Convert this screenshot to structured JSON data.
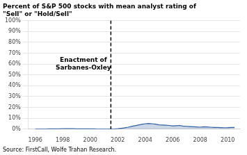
{
  "chart_data": {
    "type": "area",
    "title": [
      "Percent of S&P 500 stocks with mean analyst rating of",
      "\"Sell\" or \"Hold/Sell\""
    ],
    "source": "Source: FirstCall, Wolfe Trahan Research.",
    "annotations": [
      {
        "text": "Enactment of\nSarbanes-Oxley",
        "x": 1999.5,
        "y": 0.6
      }
    ],
    "vlines": [
      {
        "x": 2001.5,
        "color": "black",
        "line_style": "dashed"
      }
    ],
    "x": [
      1996.0,
      1996.25,
      1996.5,
      1996.75,
      1997.0,
      1997.25,
      1997.5,
      1997.75,
      1998.0,
      1998.25,
      1998.5,
      1998.75,
      1999.0,
      1999.25,
      1999.5,
      1999.75,
      2000.0,
      2000.25,
      2000.5,
      2000.75,
      2001.0,
      2001.25,
      2001.5,
      2001.75,
      2002.0,
      2002.25,
      2002.5,
      2002.75,
      2003.0,
      2003.25,
      2003.5,
      2003.75,
      2004.0,
      2004.25,
      2004.5,
      2004.75,
      2005.0,
      2005.25,
      2005.5,
      2005.75,
      2006.0,
      2006.25,
      2006.5,
      2006.75,
      2007.0,
      2007.25,
      2007.5,
      2007.75,
      2008.0,
      2008.25,
      2008.5,
      2008.75,
      2009.0,
      2009.25,
      2009.5,
      2009.75,
      2010.0,
      2010.25,
      2010.5
    ],
    "series": [
      {
        "color": "#3060a0",
        "values": [
          0.002,
          0.002,
          0.002,
          0.002,
          0.003,
          0.003,
          0.003,
          0.003,
          0.004,
          0.004,
          0.004,
          0.004,
          0.003,
          0.003,
          0.003,
          0.003,
          0.003,
          0.003,
          0.002,
          0.002,
          0.002,
          0.002,
          0.002,
          0.002,
          0.004,
          0.008,
          0.012,
          0.018,
          0.025,
          0.032,
          0.038,
          0.044,
          0.05,
          0.052,
          0.05,
          0.046,
          0.04,
          0.038,
          0.036,
          0.034,
          0.03,
          0.032,
          0.034,
          0.028,
          0.026,
          0.024,
          0.022,
          0.02,
          0.018,
          0.022,
          0.02,
          0.018,
          0.016,
          0.015,
          0.014,
          0.013,
          0.014,
          0.016,
          0.015
        ]
      }
    ],
    "xlim": [
      1995.5,
      2010.9
    ],
    "ylim": [
      0,
      1.0
    ],
    "xticks": [
      1996,
      1998,
      2000,
      2002,
      2004,
      2006,
      2008,
      2010
    ],
    "yticks": [
      {
        "value": 0.0,
        "label": "0%"
      },
      {
        "value": 0.1,
        "label": "10%"
      },
      {
        "value": 0.2,
        "label": "20%"
      },
      {
        "value": 0.3,
        "label": "30%"
      },
      {
        "value": 0.4,
        "label": "40%"
      },
      {
        "value": 0.5,
        "label": "50%"
      },
      {
        "value": 0.6,
        "label": "60%"
      },
      {
        "value": 0.7,
        "label": "70%"
      },
      {
        "value": 0.8,
        "label": "80%"
      },
      {
        "value": 0.9,
        "label": "90%"
      },
      {
        "value": 1.0,
        "label": "100%"
      }
    ],
    "grid": "y"
  }
}
